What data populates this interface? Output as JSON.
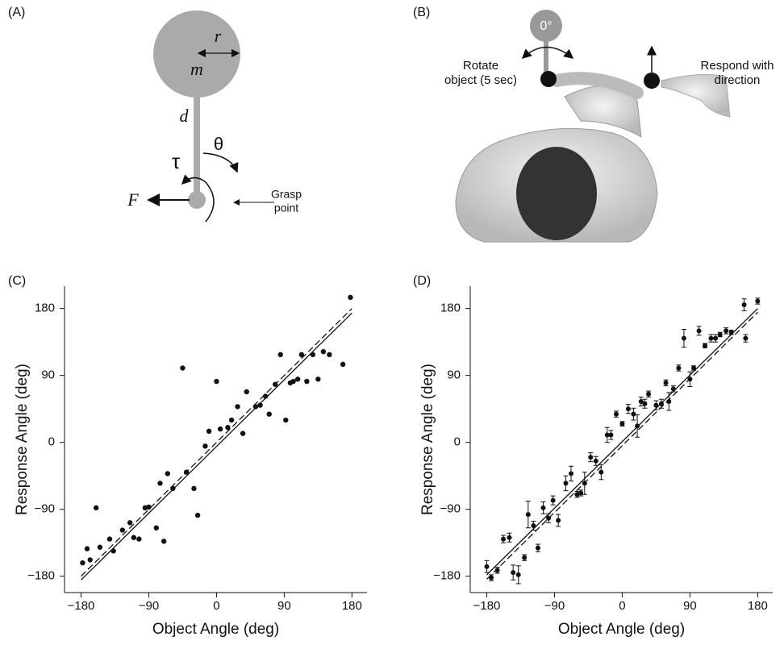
{
  "panels": {
    "a": {
      "label": "(A)",
      "r": "r",
      "m": "m",
      "d": "d",
      "theta": "θ",
      "tau": "τ",
      "force": "F",
      "grasp": [
        "Grasp",
        "point"
      ]
    },
    "b": {
      "label": "(B)",
      "zero": "0°",
      "rotate": [
        "Rotate",
        "object (5 sec)"
      ],
      "respond": [
        "Respond with",
        "direction"
      ]
    }
  },
  "chart_data": [
    {
      "type": "scatter",
      "panel_label": "(C)",
      "xlabel": "Object Angle (deg)",
      "ylabel": "Response Angle (deg)",
      "xlim": [
        -202,
        200
      ],
      "ylim": [
        -202,
        210
      ],
      "xticks": [
        {
          "value": -180,
          "label": "−180"
        },
        {
          "value": -90,
          "label": "−90"
        },
        0,
        90,
        180
      ],
      "yticks": [
        {
          "value": -180,
          "label": "−180"
        },
        {
          "value": -90,
          "label": "−90"
        },
        0,
        90,
        180
      ],
      "x": [
        -178,
        -172,
        -168,
        -160,
        -155,
        -142,
        -137,
        -125,
        -115,
        -110,
        -103,
        -95,
        -90,
        -80,
        -75,
        -70,
        -65,
        -58,
        -45,
        -40,
        -30,
        -25,
        -15,
        -10,
        0,
        5,
        15,
        20,
        28,
        35,
        40,
        52,
        58,
        65,
        70,
        78,
        85,
        92,
        98,
        102,
        108,
        113,
        120,
        128,
        135,
        142,
        150,
        168,
        178
      ],
      "y": [
        -162,
        -143,
        -158,
        -88,
        -141,
        -130,
        -146,
        -118,
        -108,
        -128,
        -130,
        -88,
        -87,
        -115,
        -55,
        -133,
        -42,
        -62,
        100,
        -40,
        -62,
        -98,
        -5,
        15,
        82,
        18,
        20,
        30,
        48,
        12,
        68,
        48,
        50,
        62,
        38,
        78,
        118,
        30,
        80,
        82,
        85,
        118,
        82,
        118,
        85,
        122,
        118,
        105,
        195
      ],
      "lines": [
        {
          "style": "solid",
          "x": [
            -180,
            180
          ],
          "y": [
            -185,
            174
          ]
        },
        {
          "style": "dashed",
          "x": [
            -180,
            180
          ],
          "y": [
            -180,
            180
          ]
        }
      ]
    },
    {
      "type": "errorbar",
      "panel_label": "(D)",
      "xlabel": "Object Angle (deg)",
      "ylabel": "Response Angle (deg)",
      "xlim": [
        -202,
        200
      ],
      "ylim": [
        -202,
        210
      ],
      "xticks": [
        {
          "value": -180,
          "label": "−180"
        },
        {
          "value": -90,
          "label": "−90"
        },
        0,
        90,
        180
      ],
      "yticks": [
        {
          "value": -180,
          "label": "−180"
        },
        {
          "value": -90,
          "label": "−90"
        },
        0,
        90,
        180
      ],
      "x": [
        -180,
        -174,
        -166,
        -158,
        -150,
        -145,
        -138,
        -130,
        -125,
        -118,
        -112,
        -105,
        -98,
        -92,
        -85,
        -75,
        -68,
        -60,
        -55,
        -50,
        -42,
        -35,
        -28,
        -20,
        -15,
        -8,
        0,
        8,
        15,
        20,
        25,
        30,
        35,
        45,
        52,
        58,
        62,
        68,
        75,
        82,
        90,
        95,
        102,
        110,
        118,
        124,
        130,
        138,
        145,
        162,
        164,
        180
      ],
      "y": [
        -167,
        -182,
        -172,
        -130,
        -128,
        -175,
        -178,
        -155,
        -97,
        -112,
        -142,
        -88,
        -102,
        -78,
        -105,
        -55,
        -42,
        -70,
        -68,
        -55,
        -20,
        -25,
        -40,
        10,
        10,
        38,
        25,
        45,
        38,
        22,
        55,
        52,
        65,
        50,
        52,
        80,
        55,
        72,
        100,
        140,
        85,
        100,
        150,
        130,
        140,
        140,
        145,
        150,
        148,
        185,
        140,
        190
      ],
      "err": [
        8,
        4,
        4,
        5,
        6,
        10,
        12,
        4,
        18,
        6,
        5,
        8,
        6,
        6,
        8,
        10,
        10,
        4,
        4,
        15,
        6,
        6,
        10,
        10,
        6,
        4,
        3,
        6,
        8,
        15,
        6,
        6,
        4,
        6,
        6,
        4,
        12,
        4,
        4,
        12,
        10,
        3,
        6,
        3,
        5,
        5,
        3,
        4,
        3,
        8,
        5,
        4
      ],
      "lines": [
        {
          "style": "solid",
          "x": [
            -180,
            180
          ],
          "y": [
            -178,
            180
          ]
        },
        {
          "style": "dashed",
          "x": [
            -180,
            180
          ],
          "y": [
            -184,
            175
          ]
        }
      ]
    }
  ]
}
